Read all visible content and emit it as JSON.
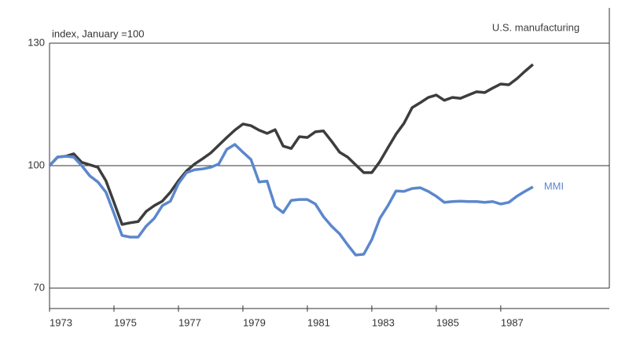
{
  "chart_data": {
    "type": "line",
    "annotation": "index, January =100",
    "x": [
      1973,
      1973.25,
      1973.5,
      1973.75,
      1974,
      1974.25,
      1974.5,
      1974.75,
      1975,
      1975.25,
      1975.5,
      1975.75,
      1976,
      1976.25,
      1976.5,
      1976.75,
      1977,
      1977.25,
      1977.5,
      1977.75,
      1978,
      1978.25,
      1978.5,
      1978.75,
      1979,
      1979.25,
      1979.5,
      1979.75,
      1980,
      1980.25,
      1980.5,
      1980.75,
      1981,
      1981.25,
      1981.5,
      1981.75,
      1982,
      1982.25,
      1982.5,
      1982.75,
      1983,
      1983.25,
      1983.5,
      1983.75,
      1984,
      1984.25,
      1984.5,
      1984.75,
      1985,
      1985.25,
      1985.5,
      1985.75,
      1986,
      1986.25,
      1986.5,
      1986.75,
      1987,
      1987.25,
      1987.5,
      1987.75,
      1988
    ],
    "series": [
      {
        "name": "U.S. manufacturing",
        "color": "#3d3d3d",
        "values": [
          100,
          102.1,
          102.3,
          102.9,
          100.8,
          100.2,
          99.6,
          96.3,
          91,
          85.6,
          86,
          86.3,
          88.8,
          90.2,
          91.3,
          93.5,
          96.3,
          98.7,
          100.4,
          101.7,
          103.1,
          105,
          106.9,
          108.7,
          110.2,
          109.8,
          108.7,
          107.9,
          108.8,
          104.8,
          104.2,
          107.1,
          106.9,
          108.3,
          108.5,
          106,
          103.3,
          102.1,
          100.2,
          98.3,
          98.3,
          101,
          104.4,
          107.7,
          110.4,
          114.2,
          115.4,
          116.7,
          117.3,
          116,
          116.7,
          116.5,
          117.3,
          118.1,
          117.9,
          119,
          120,
          119.8,
          121.3,
          123.1,
          124.8
        ]
      },
      {
        "name": "MMI",
        "color": "#5b87cc",
        "values": [
          100,
          102.1,
          102.3,
          102.1,
          100,
          97.5,
          96,
          93.5,
          88.3,
          82.9,
          82.5,
          82.5,
          85.2,
          87.1,
          90.2,
          91.3,
          95.6,
          98.3,
          99,
          99.2,
          99.6,
          100.4,
          104,
          105.2,
          103.3,
          101.5,
          96,
          96.2,
          90,
          88.5,
          91.5,
          91.7,
          91.7,
          90.6,
          87.5,
          85.2,
          83.3,
          80.6,
          78.1,
          78.3,
          81.9,
          87.1,
          90.2,
          93.8,
          93.7,
          94.4,
          94.6,
          93.7,
          92.5,
          91,
          91.2,
          91.3,
          91.2,
          91.2,
          91,
          91.2,
          90.6,
          91,
          92.5,
          93.7,
          94.8
        ]
      }
    ],
    "xlim": [
      1973,
      1990.37
    ],
    "xticks": [
      1973,
      1975,
      1977,
      1979,
      1981,
      1983,
      1985,
      1987
    ],
    "ylim": [
      65,
      130
    ],
    "yticks": [
      70,
      100,
      130
    ],
    "grid": true
  }
}
